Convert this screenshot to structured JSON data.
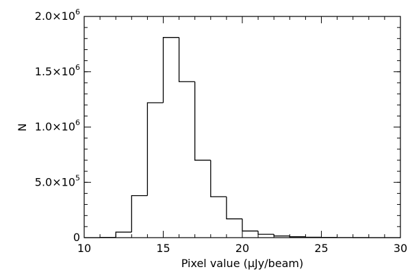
{
  "chart_data": {
    "type": "bar",
    "style": "step-histogram",
    "xlabel": "Pixel value (μJy/beam)",
    "ylabel": "N",
    "xlim": [
      10,
      30
    ],
    "ylim": [
      0,
      2000000
    ],
    "bin_width": 1,
    "bins": [
      {
        "x0": 10,
        "x1": 11,
        "value": 0
      },
      {
        "x0": 11,
        "x1": 12,
        "value": 2000
      },
      {
        "x0": 12,
        "x1": 13,
        "value": 50000
      },
      {
        "x0": 13,
        "x1": 14,
        "value": 380000
      },
      {
        "x0": 14,
        "x1": 15,
        "value": 1220000
      },
      {
        "x0": 15,
        "x1": 16,
        "value": 1810000
      },
      {
        "x0": 16,
        "x1": 17,
        "value": 1410000
      },
      {
        "x0": 17,
        "x1": 18,
        "value": 700000
      },
      {
        "x0": 18,
        "x1": 19,
        "value": 370000
      },
      {
        "x0": 19,
        "x1": 20,
        "value": 170000
      },
      {
        "x0": 20,
        "x1": 21,
        "value": 60000
      },
      {
        "x0": 21,
        "x1": 22,
        "value": 30000
      },
      {
        "x0": 22,
        "x1": 23,
        "value": 15000
      },
      {
        "x0": 23,
        "x1": 24,
        "value": 8000
      },
      {
        "x0": 24,
        "x1": 25,
        "value": 4000
      },
      {
        "x0": 25,
        "x1": 26,
        "value": 2000
      },
      {
        "x0": 26,
        "x1": 27,
        "value": 1000
      },
      {
        "x0": 27,
        "x1": 28,
        "value": 500
      },
      {
        "x0": 28,
        "x1": 29,
        "value": 200
      },
      {
        "x0": 29,
        "x1": 30,
        "value": 0
      }
    ],
    "x_ticks": [
      {
        "value": 10,
        "label": "10"
      },
      {
        "value": 15,
        "label": "15"
      },
      {
        "value": 20,
        "label": "20"
      },
      {
        "value": 25,
        "label": "25"
      },
      {
        "value": 30,
        "label": "30"
      }
    ],
    "x_minor_step": 1,
    "y_ticks": [
      {
        "value": 0,
        "mantissa": "0",
        "exponent": ""
      },
      {
        "value": 500000,
        "mantissa": "5.0×10",
        "exponent": "5"
      },
      {
        "value": 1000000,
        "mantissa": "1.0×10",
        "exponent": "6"
      },
      {
        "value": 1500000,
        "mantissa": "1.5×10",
        "exponent": "6"
      },
      {
        "value": 2000000,
        "mantissa": "2.0×10",
        "exponent": "6"
      }
    ],
    "y_minor_step": 100000,
    "grid": false,
    "legend": "none",
    "line_color": "#000000"
  }
}
